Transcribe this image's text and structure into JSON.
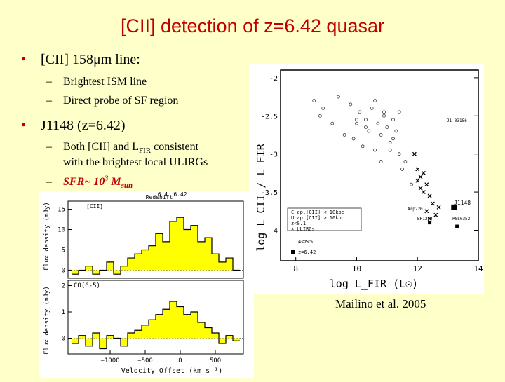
{
  "title": "[CII] detection of z=6.42 quasar",
  "bullets": [
    {
      "text": "[CII] 158μm line:",
      "subs": [
        "Brightest ISM line",
        "Direct probe of SF region"
      ]
    },
    {
      "text": "J1148 (z=6.42)",
      "subs": []
    }
  ],
  "sub2a": {
    "a": "Both [CII] and L",
    "sub": "FIR",
    "b": " consistent"
  },
  "sub2b": "with the brightest local ULIRGs",
  "sfr": {
    "a": "SFR~ 10",
    "sup": "3",
    "b": " M",
    "sub": "sun"
  },
  "credit": "Mailino et al. 2005",
  "colors": {
    "title": "#c00000",
    "background": "#ffffc9",
    "fill": "#ffff00"
  },
  "chart_data": [
    {
      "type": "scatter",
      "xlabel": "log L_FIR (L☉)",
      "ylabel": "log L_CII / L_FIR",
      "xlim": [
        7.5,
        14
      ],
      "ylim": [
        -4.4,
        -1.9
      ],
      "x_ticks": [
        8,
        10,
        12,
        14
      ],
      "y_ticks": [
        -2,
        -2.5,
        -3,
        -3.5,
        -4
      ],
      "x_tick_labels": [
        "8",
        "10",
        "12",
        "14"
      ],
      "y_tick_labels": [
        "-2",
        "-2.5",
        "-3",
        "-3.5",
        "-4"
      ],
      "legend_entries": [
        "C ap.[CII] < 10kpc",
        "U ap.[CII] > 10kpc",
        "z<0.1",
        "× ULIRGs",
        "4<z<5",
        "z=6.42"
      ],
      "annotations": [
        "J1148",
        "J1-03156",
        "Arp220",
        "PSS0352",
        "BR1202"
      ],
      "series": [
        {
          "name": "C",
          "x": [
            8.6,
            8.9,
            9.4,
            9.8,
            10.1,
            10.3,
            10.5,
            10.7,
            10.9,
            10.4,
            10.8,
            11.0,
            11.2,
            11.4,
            9.9,
            10.2,
            10.6,
            11.1,
            11.3,
            10.0
          ],
          "y": [
            -2.3,
            -2.4,
            -2.25,
            -2.35,
            -2.45,
            -2.55,
            -2.4,
            -2.6,
            -2.5,
            -2.7,
            -2.75,
            -2.65,
            -2.55,
            -2.45,
            -2.8,
            -2.9,
            -2.95,
            -2.85,
            -2.7,
            -2.6
          ]
        },
        {
          "name": "U",
          "x": [
            8.8,
            9.2,
            9.6,
            10.0,
            10.3,
            10.6,
            10.9,
            11.2,
            11.4,
            11.5,
            11.1,
            10.8,
            11.6,
            11.8
          ],
          "y": [
            -2.5,
            -2.6,
            -2.75,
            -2.55,
            -2.65,
            -2.3,
            -2.45,
            -2.8,
            -3.0,
            -3.2,
            -2.95,
            -3.1,
            -3.1,
            -3.4
          ]
        },
        {
          "name": "ULIRGs",
          "x": [
            11.9,
            12.0,
            12.1,
            12.2,
            12.0,
            12.3,
            12.1,
            12.4,
            12.2,
            12.5,
            12.3,
            12.6,
            12.4,
            12.7
          ],
          "y": [
            -3.0,
            -3.2,
            -3.3,
            -3.25,
            -3.35,
            -3.4,
            -3.45,
            -3.55,
            -3.5,
            -3.65,
            -3.75,
            -3.8,
            -3.85,
            -3.7
          ]
        },
        {
          "name": "4<z<5",
          "x": [
            12.4,
            13.3
          ],
          "y": [
            -3.9,
            -3.95
          ]
        },
        {
          "name": "z=6.42",
          "x": [
            13.2
          ],
          "y": [
            -3.7
          ]
        }
      ]
    },
    {
      "type": "bar",
      "ylabel": "Flux density (mJy)",
      "label": "[CII]",
      "top_axis": "Redshift",
      "top_ticks": [
        "6.4",
        "6.42"
      ],
      "y_ticks": [
        0,
        5,
        10,
        15
      ],
      "y_tick_labels": [
        "0",
        "5",
        "10",
        "15"
      ],
      "ylim": [
        -2,
        17
      ],
      "xlim": [
        -1600,
        900
      ],
      "x": [
        -1500,
        -1400,
        -1300,
        -1200,
        -1100,
        -1000,
        -900,
        -800,
        -700,
        -600,
        -500,
        -400,
        -300,
        -200,
        -100,
        0,
        100,
        200,
        300,
        400,
        500,
        600,
        700,
        800
      ],
      "values": [
        -1,
        0,
        1,
        -1,
        0,
        2,
        -1,
        1,
        3,
        4,
        5,
        6,
        9,
        7,
        12,
        13,
        10,
        11,
        7,
        8,
        4,
        2,
        3,
        0
      ]
    },
    {
      "type": "bar",
      "xlabel": "Velocity Offset (km s⁻¹)",
      "ylabel": "Flux density (mJy)",
      "label": "CO(6-5)",
      "x_ticks": [
        -1000,
        -500,
        0,
        500
      ],
      "x_tick_labels": [
        "−1000",
        "−500",
        "0",
        "500"
      ],
      "y_ticks": [
        0,
        1,
        2
      ],
      "y_tick_labels": [
        "0",
        "1",
        "2"
      ],
      "xlim": [
        -1600,
        900
      ],
      "ylim": [
        -0.6,
        2.2
      ],
      "x": [
        -1500,
        -1400,
        -1300,
        -1200,
        -1100,
        -1000,
        -900,
        -800,
        -700,
        -600,
        -500,
        -400,
        -300,
        -200,
        -100,
        0,
        100,
        200,
        300,
        400,
        500,
        600,
        700,
        800
      ],
      "values": [
        -0.2,
        0.1,
        -0.3,
        0.2,
        -0.4,
        0.1,
        0.0,
        -0.3,
        0.2,
        0.3,
        0.5,
        0.7,
        0.9,
        1.1,
        1.4,
        1.2,
        0.9,
        1.0,
        0.6,
        0.4,
        0.2,
        -0.2,
        0.1,
        -0.1
      ]
    }
  ]
}
